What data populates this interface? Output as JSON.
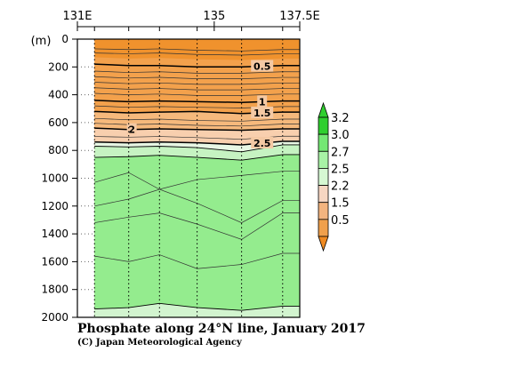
{
  "chart_data": {
    "type": "heatmap",
    "title": "Phosphate along 24°N line, January 2017",
    "credit": "(C) Japan Meteorological Agency",
    "ylabel": "(m)",
    "xlim": [
      131,
      137.5
    ],
    "ylim": [
      0,
      2000
    ],
    "y_inverted": true,
    "x_ticks": [
      {
        "value": 131,
        "label": "131E"
      },
      {
        "value": 135,
        "label": "135"
      },
      {
        "value": 137.5,
        "label": "137.5E"
      }
    ],
    "y_ticks": [
      {
        "value": 0,
        "label": "0"
      },
      {
        "value": 200,
        "label": "200"
      },
      {
        "value": 400,
        "label": "400"
      },
      {
        "value": 600,
        "label": "600"
      },
      {
        "value": 800,
        "label": "800"
      },
      {
        "value": 1000,
        "label": "1000"
      },
      {
        "value": 1200,
        "label": "1200"
      },
      {
        "value": 1400,
        "label": "1400"
      },
      {
        "value": 1600,
        "label": "1600"
      },
      {
        "value": 1800,
        "label": "1800"
      },
      {
        "value": 2000,
        "label": "2000"
      }
    ],
    "stations_lon": [
      131.5,
      132.5,
      133.4,
      134.5,
      135.8,
      137.0
    ],
    "no_data_lon_range": [
      131,
      131.5
    ],
    "colorbar": {
      "levels": [
        {
          "label": "3.2",
          "color": "#2fcf2f"
        },
        {
          "label": "3.0",
          "color": "#74e874"
        },
        {
          "label": "2.7",
          "color": "#a8f3a6"
        },
        {
          "label": "2.5",
          "color": "#d6f8d3"
        },
        {
          "label": "2.2",
          "color": "#f6d6c2"
        },
        {
          "label": "1.5",
          "color": "#f3b47f"
        },
        {
          "label": "0.5",
          "color": "#f0a04c"
        }
      ],
      "top_color": "#2fcf2f",
      "bottom_color": "#ef8a22"
    },
    "layers": [
      {
        "color": "#f0922d",
        "depth": [
          0,
          0,
          0,
          0,
          0,
          0
        ]
      },
      {
        "color": "#f3a14c",
        "depth": [
          130,
          140,
          135,
          145,
          150,
          140
        ]
      },
      {
        "color": "#f6b97c",
        "depth": [
          520,
          530,
          525,
          520,
          535,
          525
        ]
      },
      {
        "color": "#f8cfae",
        "depth": [
          640,
          650,
          645,
          650,
          655,
          645
        ]
      },
      {
        "color": "#e8f7e4",
        "depth": [
          740,
          745,
          740,
          745,
          760,
          735
        ]
      },
      {
        "color": "#c6f3c2",
        "depth": [
          770,
          775,
          770,
          780,
          810,
          760
        ]
      },
      {
        "color": "#94ec8e",
        "depth": [
          850,
          845,
          835,
          850,
          870,
          830
        ]
      },
      {
        "color": "#d2f4cf",
        "depth": [
          1940,
          1930,
          1900,
          1930,
          1950,
          1920
        ]
      }
    ],
    "contours": [
      {
        "value": 0.5,
        "label": "0.5",
        "depth": [
          180,
          190,
          190,
          200,
          200,
          190
        ]
      },
      {
        "value": 1,
        "label": "1",
        "depth": [
          440,
          450,
          445,
          450,
          455,
          445
        ]
      },
      {
        "value": 1.5,
        "label": "1.5",
        "depth": [
          520,
          530,
          525,
          520,
          535,
          525
        ]
      },
      {
        "value": 2,
        "label": "2",
        "depth": [
          640,
          650,
          645,
          650,
          655,
          645
        ]
      },
      {
        "value": 2.5,
        "label": "2.5",
        "depth": [
          740,
          745,
          740,
          745,
          760,
          735
        ]
      },
      {
        "value": 2.7,
        "label": "",
        "depth": [
          770,
          775,
          770,
          780,
          810,
          760
        ]
      },
      {
        "value": 3.0,
        "label": "",
        "depth": [
          850,
          845,
          835,
          850,
          870,
          830
        ]
      },
      {
        "value": 3.2,
        "label": "",
        "depth": [
          1940,
          1930,
          1900,
          1930,
          1950,
          1920
        ]
      }
    ],
    "thin_contours": [
      [
        70,
        75,
        70,
        80,
        85,
        75
      ],
      [
        100,
        105,
        100,
        110,
        115,
        105
      ],
      [
        230,
        240,
        235,
        245,
        245,
        235
      ],
      [
        270,
        280,
        275,
        285,
        285,
        275
      ],
      [
        310,
        320,
        315,
        325,
        325,
        315
      ],
      [
        350,
        360,
        355,
        365,
        365,
        355
      ],
      [
        390,
        400,
        395,
        405,
        405,
        395
      ],
      [
        480,
        490,
        485,
        490,
        495,
        485
      ],
      [
        570,
        580,
        575,
        585,
        590,
        575
      ],
      [
        605,
        615,
        610,
        620,
        625,
        610
      ],
      [
        700,
        705,
        700,
        708,
        720,
        698
      ],
      [
        1030,
        960,
        1080,
        1010,
        980,
        950
      ],
      [
        1200,
        1150,
        1080,
        1180,
        1320,
        1160
      ],
      [
        1320,
        1280,
        1250,
        1330,
        1440,
        1250
      ],
      [
        1560,
        1600,
        1550,
        1650,
        1620,
        1540
      ]
    ]
  }
}
